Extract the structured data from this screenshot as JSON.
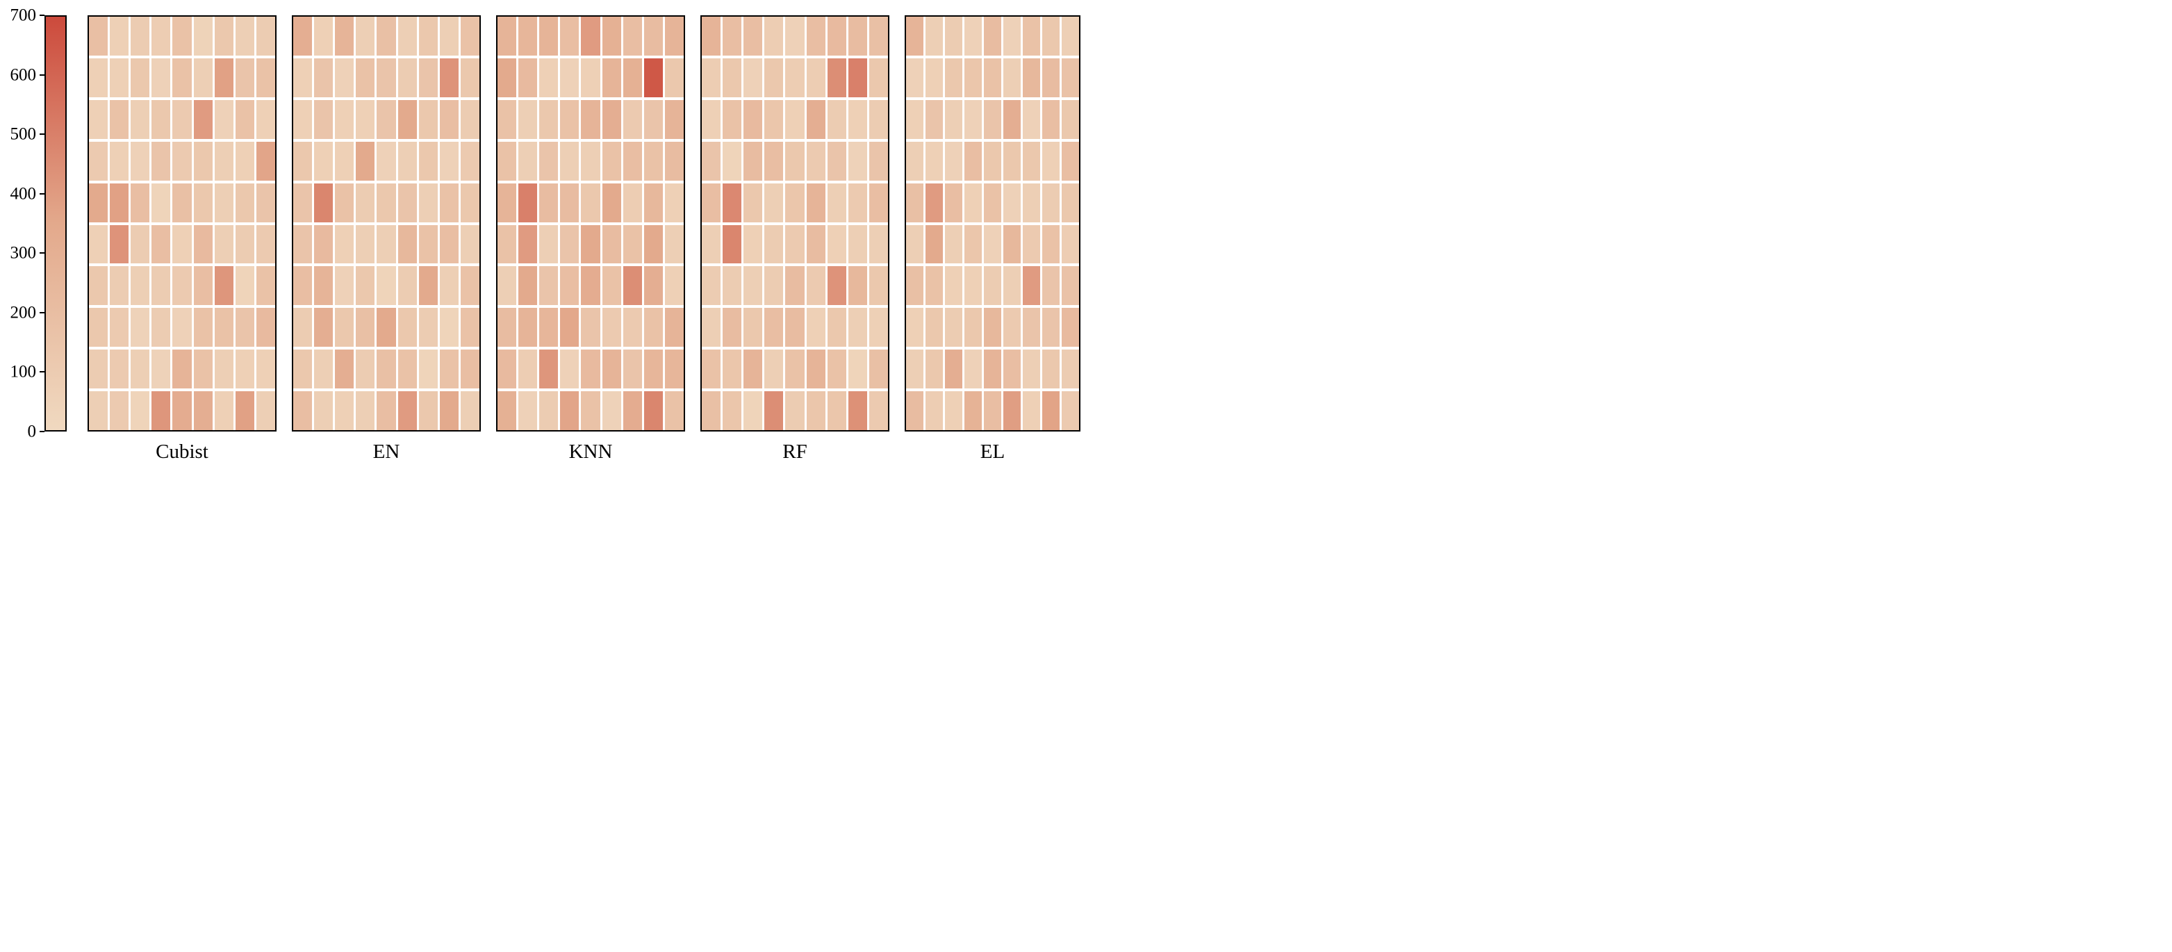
{
  "figure": {
    "background_color": "#ffffff",
    "panel_border_color": "#000000",
    "cell_gap_color": "#ffffff"
  },
  "chart_data": {
    "type": "heatmap",
    "layout": "five 10x9 heatmap panels side by side sharing one vertical colorbar on the left",
    "rows": 10,
    "cols": 9,
    "grid": false,
    "colorbar": {
      "min": 0,
      "max": 700,
      "position": "left",
      "tick_values": [
        700,
        600,
        500,
        400,
        300,
        200,
        100,
        0
      ],
      "tick_labels": [
        "700",
        "600",
        "500",
        "400",
        "300",
        "200",
        "100",
        "0"
      ],
      "colormap_stops": [
        {
          "value": 0,
          "color": "#f0d9c0"
        },
        {
          "value": 350,
          "color": "#e3a98c"
        },
        {
          "value": 700,
          "color": "#cc4a3c"
        }
      ]
    },
    "panels": [
      {
        "label": "Cubist",
        "values": [
          [
            190,
            65,
            95,
            85,
            165,
            45,
            125,
            75,
            95
          ],
          [
            65,
            65,
            125,
            55,
            165,
            75,
            380,
            150,
            165
          ],
          [
            65,
            165,
            75,
            125,
            110,
            400,
            55,
            165,
            65
          ],
          [
            110,
            65,
            55,
            150,
            110,
            125,
            75,
            65,
            365
          ],
          [
            340,
            380,
            195,
            40,
            180,
            125,
            75,
            125,
            150
          ],
          [
            65,
            430,
            95,
            195,
            65,
            225,
            75,
            95,
            110
          ],
          [
            125,
            95,
            75,
            95,
            110,
            195,
            420,
            40,
            165
          ],
          [
            125,
            110,
            50,
            95,
            55,
            165,
            165,
            150,
            225
          ],
          [
            95,
            110,
            75,
            50,
            270,
            165,
            75,
            65,
            65
          ],
          [
            75,
            110,
            40,
            420,
            325,
            310,
            65,
            380,
            75
          ]
        ]
      },
      {
        "label": "EN",
        "values": [
          [
            310,
            65,
            270,
            75,
            180,
            75,
            125,
            75,
            165
          ],
          [
            65,
            150,
            55,
            165,
            150,
            95,
            150,
            430,
            125
          ],
          [
            65,
            150,
            65,
            65,
            150,
            340,
            125,
            195,
            95
          ],
          [
            125,
            65,
            65,
            340,
            55,
            75,
            125,
            55,
            110
          ],
          [
            150,
            480,
            165,
            95,
            125,
            150,
            75,
            165,
            125
          ],
          [
            150,
            225,
            65,
            75,
            75,
            240,
            165,
            195,
            75
          ],
          [
            195,
            270,
            55,
            125,
            40,
            95,
            340,
            75,
            165
          ],
          [
            95,
            310,
            125,
            180,
            340,
            125,
            95,
            40,
            165
          ],
          [
            125,
            75,
            310,
            95,
            180,
            165,
            40,
            165,
            195
          ],
          [
            195,
            75,
            65,
            75,
            195,
            400,
            125,
            340,
            75
          ]
        ]
      },
      {
        "label": "KNN",
        "values": [
          [
            270,
            255,
            270,
            195,
            400,
            295,
            195,
            210,
            270
          ],
          [
            340,
            225,
            65,
            55,
            65,
            270,
            295,
            650,
            125
          ],
          [
            165,
            75,
            125,
            165,
            270,
            310,
            110,
            150,
            270
          ],
          [
            165,
            75,
            150,
            75,
            75,
            165,
            195,
            165,
            210
          ],
          [
            270,
            500,
            210,
            210,
            125,
            340,
            85,
            240,
            65
          ],
          [
            165,
            400,
            75,
            150,
            340,
            210,
            165,
            340,
            75
          ],
          [
            75,
            340,
            150,
            195,
            325,
            165,
            450,
            310,
            65
          ],
          [
            210,
            270,
            255,
            355,
            150,
            110,
            110,
            165,
            270
          ],
          [
            225,
            85,
            420,
            55,
            225,
            270,
            150,
            255,
            255
          ],
          [
            295,
            55,
            95,
            365,
            165,
            50,
            325,
            480,
            165
          ]
        ]
      },
      {
        "label": "RF",
        "values": [
          [
            270,
            195,
            195,
            85,
            55,
            195,
            225,
            210,
            180
          ],
          [
            85,
            125,
            55,
            125,
            85,
            85,
            450,
            500,
            125
          ],
          [
            65,
            165,
            225,
            140,
            65,
            310,
            95,
            65,
            95
          ],
          [
            150,
            40,
            210,
            195,
            125,
            110,
            150,
            50,
            150
          ],
          [
            195,
            470,
            125,
            75,
            140,
            270,
            75,
            110,
            195
          ],
          [
            75,
            480,
            65,
            95,
            110,
            210,
            65,
            75,
            75
          ],
          [
            95,
            95,
            75,
            95,
            210,
            110,
            430,
            240,
            125
          ],
          [
            75,
            210,
            125,
            195,
            210,
            65,
            125,
            75,
            65
          ],
          [
            165,
            140,
            270,
            75,
            165,
            270,
            165,
            40,
            180
          ],
          [
            180,
            140,
            40,
            450,
            95,
            140,
            140,
            440,
            110
          ]
        ]
      },
      {
        "label": "EL",
        "values": [
          [
            270,
            75,
            95,
            55,
            210,
            55,
            165,
            125,
            75
          ],
          [
            55,
            65,
            125,
            140,
            165,
            75,
            240,
            210,
            165
          ],
          [
            65,
            150,
            75,
            55,
            150,
            310,
            55,
            195,
            125
          ],
          [
            75,
            65,
            55,
            195,
            125,
            125,
            125,
            65,
            195
          ],
          [
            180,
            400,
            195,
            65,
            165,
            55,
            75,
            95,
            125
          ],
          [
            75,
            340,
            75,
            140,
            55,
            240,
            110,
            165,
            85
          ],
          [
            180,
            165,
            65,
            65,
            95,
            75,
            400,
            150,
            165
          ],
          [
            65,
            125,
            95,
            125,
            240,
            110,
            150,
            150,
            225
          ],
          [
            75,
            125,
            310,
            55,
            270,
            195,
            75,
            125,
            95
          ],
          [
            210,
            85,
            65,
            280,
            195,
            390,
            65,
            370,
            110
          ]
        ]
      }
    ]
  }
}
